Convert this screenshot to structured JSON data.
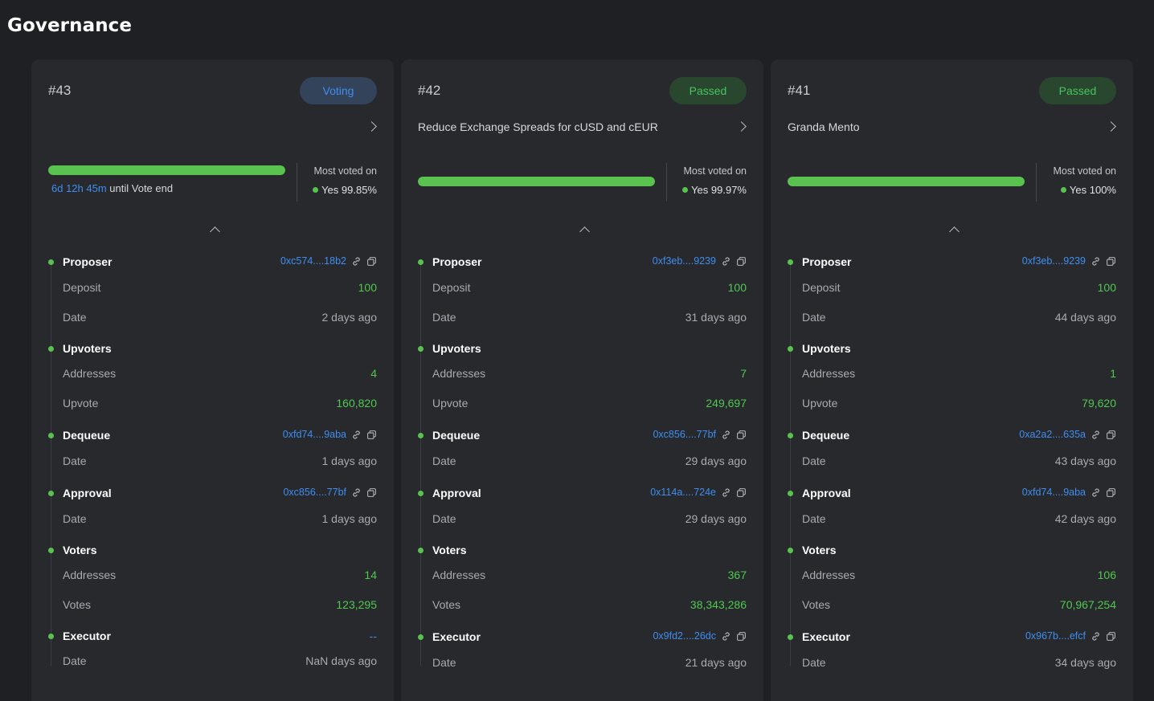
{
  "page": {
    "title": "Governance"
  },
  "colors": {
    "background": "#1f2023",
    "card": "#27292d",
    "accent_green": "#5ac34f",
    "accent_blue": "#3f8ef0"
  },
  "icons": {
    "link": "link-icon",
    "copy": "copy-icon",
    "chevron_right": "chevron-right-icon",
    "chevron_up": "chevron-up-icon"
  },
  "proposals": [
    {
      "number": "#43",
      "status": "Voting",
      "title": "",
      "progress": 1.0,
      "time_left": "6d 12h 45m",
      "time_left_suffix": "until Vote end",
      "most_voted_label": "Most voted on",
      "most_voted_value": "Yes 99.85%",
      "proposer": {
        "label": "Proposer",
        "address": "0xc574....18b2",
        "deposit_label": "Deposit",
        "deposit": "100",
        "date_label": "Date",
        "date": "2 days ago"
      },
      "upvoters": {
        "label": "Upvoters",
        "addresses_label": "Addresses",
        "addresses": "4",
        "upvote_label": "Upvote",
        "upvote": "160,820"
      },
      "dequeue": {
        "label": "Dequeue",
        "address": "0xfd74....9aba",
        "date_label": "Date",
        "date": "1 days ago"
      },
      "approval": {
        "label": "Approval",
        "address": "0xc856....77bf",
        "date_label": "Date",
        "date": "1 days ago"
      },
      "voters": {
        "label": "Voters",
        "addresses_label": "Addresses",
        "addresses": "14",
        "votes_label": "Votes",
        "votes": "123,295"
      },
      "executor": {
        "label": "Executor",
        "address": "--",
        "date_label": "Date",
        "date": "NaN days ago"
      }
    },
    {
      "number": "#42",
      "status": "Passed",
      "title": "Reduce Exchange Spreads for cUSD and cEUR",
      "progress": 1.0,
      "most_voted_label": "Most voted on",
      "most_voted_value": "Yes 99.97%",
      "proposer": {
        "label": "Proposer",
        "address": "0xf3eb....9239",
        "deposit_label": "Deposit",
        "deposit": "100",
        "date_label": "Date",
        "date": "31 days ago"
      },
      "upvoters": {
        "label": "Upvoters",
        "addresses_label": "Addresses",
        "addresses": "7",
        "upvote_label": "Upvote",
        "upvote": "249,697"
      },
      "dequeue": {
        "label": "Dequeue",
        "address": "0xc856....77bf",
        "date_label": "Date",
        "date": "29 days ago"
      },
      "approval": {
        "label": "Approval",
        "address": "0x114a....724e",
        "date_label": "Date",
        "date": "29 days ago"
      },
      "voters": {
        "label": "Voters",
        "addresses_label": "Addresses",
        "addresses": "367",
        "votes_label": "Votes",
        "votes": "38,343,286"
      },
      "executor": {
        "label": "Executor",
        "address": "0x9fd2....26dc",
        "date_label": "Date",
        "date": "21 days ago"
      }
    },
    {
      "number": "#41",
      "status": "Passed",
      "title": "Granda Mento",
      "progress": 1.0,
      "most_voted_label": "Most voted on",
      "most_voted_value": "Yes 100%",
      "proposer": {
        "label": "Proposer",
        "address": "0xf3eb....9239",
        "deposit_label": "Deposit",
        "deposit": "100",
        "date_label": "Date",
        "date": "44 days ago"
      },
      "upvoters": {
        "label": "Upvoters",
        "addresses_label": "Addresses",
        "addresses": "1",
        "upvote_label": "Upvote",
        "upvote": "79,620"
      },
      "dequeue": {
        "label": "Dequeue",
        "address": "0xa2a2....635a",
        "date_label": "Date",
        "date": "43 days ago"
      },
      "approval": {
        "label": "Approval",
        "address": "0xfd74....9aba",
        "date_label": "Date",
        "date": "42 days ago"
      },
      "voters": {
        "label": "Voters",
        "addresses_label": "Addresses",
        "addresses": "106",
        "votes_label": "Votes",
        "votes": "70,967,254"
      },
      "executor": {
        "label": "Executor",
        "address": "0x967b....efcf",
        "date_label": "Date",
        "date": "34 days ago"
      }
    }
  ]
}
